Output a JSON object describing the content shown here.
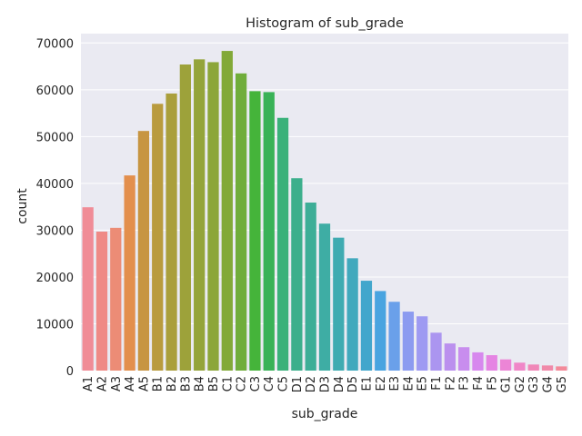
{
  "chart_data": {
    "type": "bar",
    "title": "Histogram of sub_grade",
    "xlabel": "sub_grade",
    "ylabel": "count",
    "ylim": [
      0,
      72000
    ],
    "yticks": [
      0,
      10000,
      20000,
      30000,
      40000,
      50000,
      60000,
      70000
    ],
    "grid": true,
    "categories": [
      "A1",
      "A2",
      "A3",
      "A4",
      "A5",
      "B1",
      "B2",
      "B3",
      "B4",
      "B5",
      "C1",
      "C2",
      "C3",
      "C4",
      "C5",
      "D1",
      "D2",
      "D3",
      "D4",
      "D5",
      "E1",
      "E2",
      "E3",
      "E4",
      "E5",
      "F1",
      "F2",
      "F3",
      "F4",
      "F5",
      "G1",
      "G2",
      "G3",
      "G4",
      "G5"
    ],
    "values": [
      34900,
      29700,
      30500,
      41700,
      51200,
      57000,
      59200,
      65400,
      66500,
      65900,
      68300,
      63500,
      59700,
      59500,
      54000,
      41100,
      35900,
      31400,
      28400,
      24000,
      19200,
      17000,
      14700,
      12600,
      11600,
      8100,
      5800,
      5000,
      3900,
      3300,
      2400,
      1700,
      1300,
      1100,
      900
    ],
    "colors": [
      "#f08c97",
      "#ef8a86",
      "#ec8c76",
      "#e38f4d",
      "#c79542",
      "#b99b3e",
      "#aa9f3c",
      "#9da23a",
      "#94a43a",
      "#8ca639",
      "#82a938",
      "#70ad3b",
      "#45b43a",
      "#39b257",
      "#3ab17a",
      "#3caf8c",
      "#3dae97",
      "#3eada4",
      "#3fabb1",
      "#41a9bd",
      "#42a6cc",
      "#49a4e0",
      "#6aa0ea",
      "#8c9bf0",
      "#9e9af2",
      "#ab95f0",
      "#bb90ee",
      "#c88dee",
      "#d788ee",
      "#e584e3",
      "#ec85d6",
      "#f086c8",
      "#f087b8",
      "#f089a9",
      "#f38a9a"
    ]
  }
}
